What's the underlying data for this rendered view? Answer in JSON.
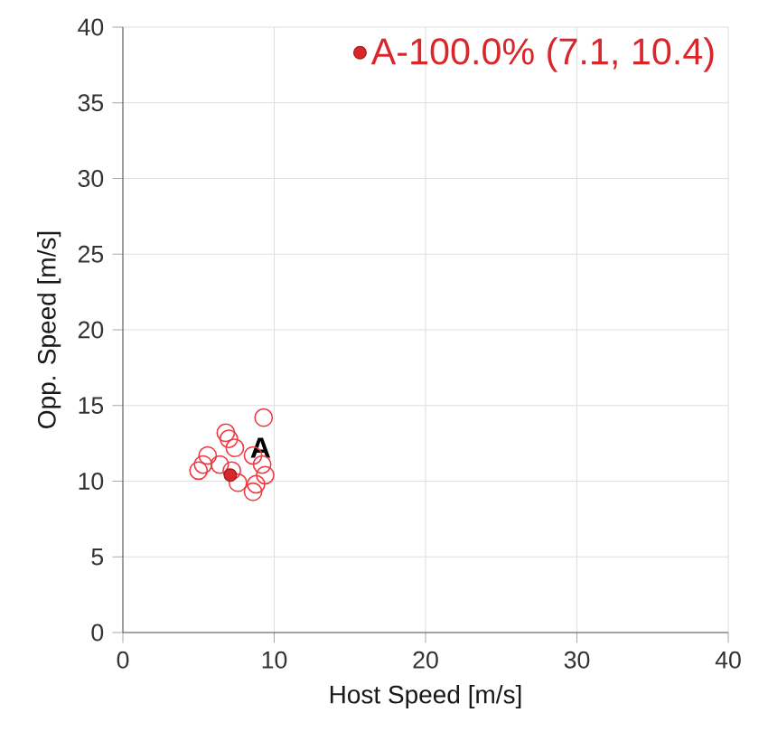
{
  "chart_data": {
    "type": "scatter",
    "xlabel": "Host Speed [m/s]",
    "ylabel": "Opp. Speed [m/s]",
    "xlim": [
      0,
      40
    ],
    "ylim": [
      0,
      40
    ],
    "xticks": [
      0,
      10,
      20,
      30,
      40
    ],
    "yticks": [
      0,
      5,
      10,
      15,
      20,
      25,
      30,
      35,
      40
    ],
    "grid": true,
    "legend": "top right",
    "marker": "circle",
    "series": [
      {
        "color": "#ee3b44",
        "x": [
          9.3,
          6.8,
          7.0,
          5.6,
          5.3,
          5.0,
          6.4,
          7.4,
          8.6,
          9.2,
          7.6,
          8.8,
          9.4,
          8.6,
          7.2
        ],
        "values": [
          14.2,
          13.2,
          12.8,
          11.7,
          11.1,
          10.7,
          11.1,
          12.2,
          11.7,
          11.1,
          9.9,
          9.8,
          10.4,
          9.3,
          10.7
        ]
      },
      {
        "name": "A-100.0% (7.1, 10.4)",
        "color": "#d9262b",
        "x": [
          7.1
        ],
        "values": [
          10.4
        ]
      }
    ],
    "annotations": [
      {
        "text": "A",
        "x": 7.1,
        "y": 10.4
      }
    ]
  }
}
